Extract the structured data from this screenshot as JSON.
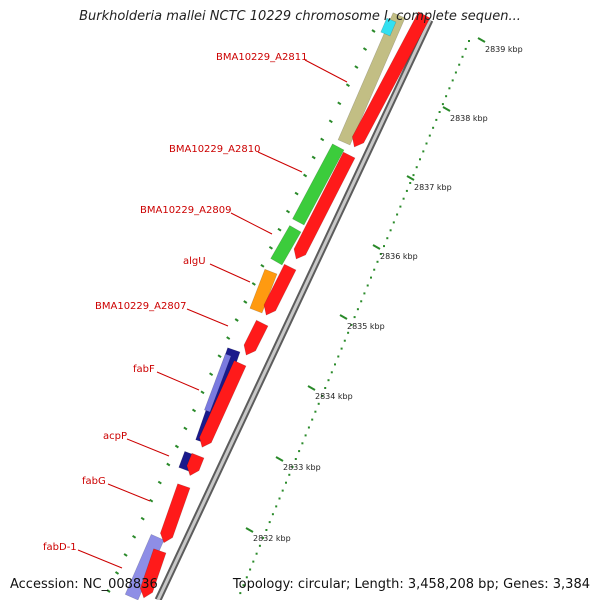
{
  "title": "Burkholderia mallei NCTC 10229 chromosome I, complete sequen...",
  "footer": {
    "accession": "Accession: NC_008836",
    "summary": "Topology: circular; Length: 3,458,208 bp; Genes: 3,384"
  },
  "colors": {
    "label": "#cc0000",
    "forward_gene": "#ff1a1a",
    "ruler": "#2a8a2a",
    "backbone": "#8a8a8a"
  },
  "ticks": [
    "2839 kbp",
    "2838 kbp",
    "2837 kbp",
    "2836 kbp",
    "2835 kbp",
    "2834 kbp",
    "2833 kbp",
    "2832 kbp"
  ],
  "gene_labels": [
    "BMA10229_A2811",
    "BMA10229_A2810",
    "BMA10229_A2809",
    "algU",
    "BMA10229_A2807",
    "fabF",
    "acpP",
    "fabG",
    "fabD-1"
  ]
}
